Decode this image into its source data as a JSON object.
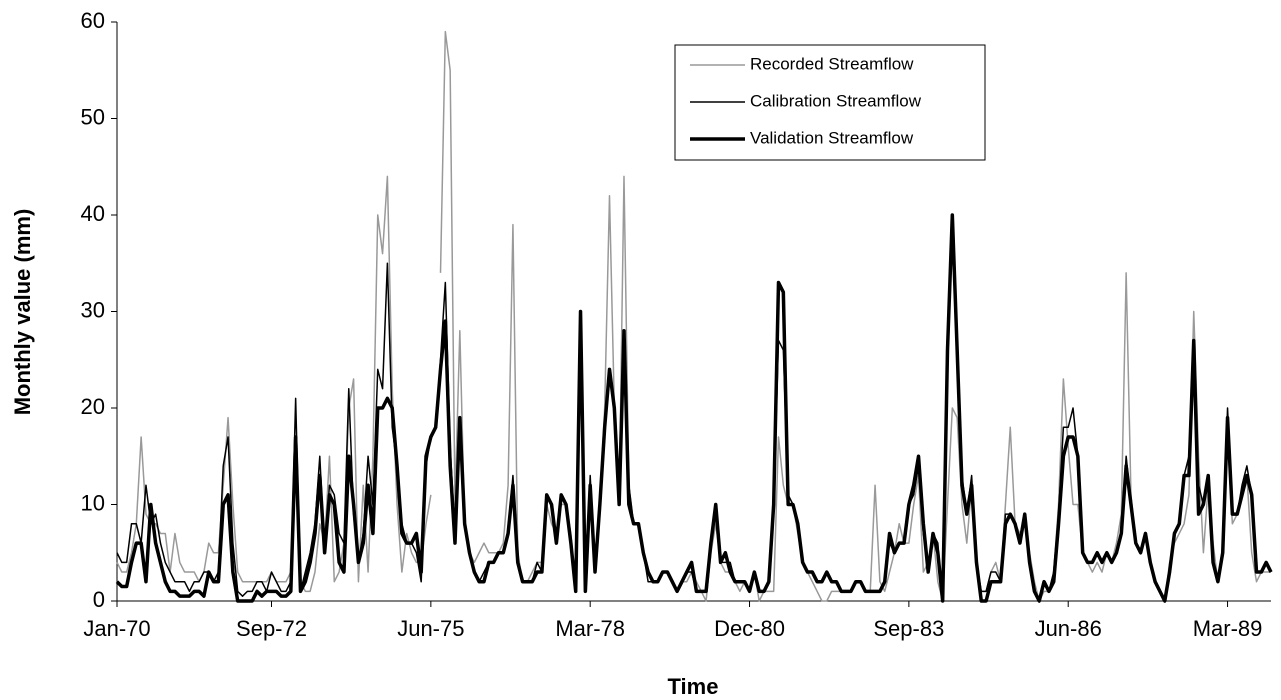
{
  "chart_data": {
    "type": "line",
    "x_label": "Time",
    "y_label": "Monthly value (mm)",
    "categories": [
      "Jan-70",
      null,
      null,
      null,
      null,
      null,
      null,
      null,
      null,
      null,
      null,
      null,
      null,
      null,
      null,
      null,
      null,
      null,
      null,
      null,
      null,
      null,
      null,
      null,
      null,
      null,
      null,
      null,
      null,
      null,
      null,
      null,
      "Sep-72",
      null,
      null,
      null,
      null,
      null,
      null,
      null,
      null,
      null,
      null,
      null,
      null,
      null,
      null,
      null,
      null,
      null,
      null,
      null,
      null,
      null,
      null,
      null,
      null,
      null,
      null,
      null,
      null,
      null,
      null,
      null,
      null,
      "Jun-75",
      null,
      null,
      null,
      null,
      null,
      null,
      null,
      null,
      null,
      null,
      null,
      null,
      null,
      null,
      null,
      null,
      null,
      null,
      null,
      null,
      null,
      null,
      null,
      null,
      null,
      null,
      null,
      null,
      null,
      null,
      null,
      null,
      "Mar-78",
      null,
      null,
      null,
      null,
      null,
      null,
      null,
      null,
      null,
      null,
      null,
      null,
      null,
      null,
      null,
      null,
      null,
      null,
      null,
      null,
      null,
      null,
      null,
      null,
      null,
      null,
      null,
      null,
      null,
      null,
      null,
      null,
      "Dec-80",
      null,
      null,
      null,
      null,
      null,
      null,
      null,
      null,
      null,
      null,
      null,
      null,
      null,
      null,
      null,
      null,
      null,
      null,
      null,
      null,
      null,
      null,
      null,
      null,
      null,
      null,
      null,
      null,
      null,
      null,
      null,
      null,
      "Sep-83",
      null,
      null,
      null,
      null,
      null,
      null,
      null,
      null,
      null,
      null,
      null,
      null,
      null,
      null,
      null,
      null,
      null,
      null,
      null,
      null,
      null,
      null,
      null,
      null,
      null,
      null,
      null,
      null,
      null,
      null,
      null,
      null,
      "Jun-86",
      null,
      null,
      null,
      null,
      null,
      null,
      null,
      null,
      null,
      null,
      null,
      null,
      null,
      null,
      null,
      null,
      null,
      null,
      null,
      null,
      null,
      null,
      null,
      null,
      null,
      null,
      null,
      null,
      null,
      null,
      null,
      null,
      "Mar-89",
      null,
      null,
      null,
      null,
      null,
      null,
      null,
      null,
      null
    ],
    "series": [
      {
        "name": "Recorded Streamflow",
        "color": "#999999",
        "width": 1.5,
        "values": [
          4,
          3,
          3,
          5,
          8,
          17,
          9,
          8,
          8,
          7,
          7,
          3,
          7,
          4,
          3,
          3,
          3,
          2,
          3,
          6,
          5,
          5,
          12,
          19,
          10,
          3,
          2,
          2,
          2,
          2,
          2,
          2,
          3,
          2,
          2,
          2,
          3,
          14,
          2,
          1,
          1,
          3,
          8,
          6,
          15,
          2,
          3,
          6,
          20,
          23,
          2,
          12,
          3,
          15,
          40,
          36,
          44,
          22,
          10,
          3,
          7,
          5,
          4,
          4,
          8,
          11,
          null,
          34,
          59,
          55,
          10,
          28,
          8,
          5,
          4,
          5,
          6,
          5,
          5,
          5,
          6,
          12,
          39,
          5,
          2,
          2,
          3,
          4,
          4,
          10,
          8,
          7,
          10,
          10,
          7,
          1,
          30,
          1,
          12,
          4,
          10,
          20,
          42,
          20,
          10,
          44,
          12,
          8,
          8,
          5,
          3,
          2,
          2,
          3,
          3,
          2,
          1,
          2,
          2,
          3,
          2,
          1,
          0,
          5,
          8,
          4,
          3,
          3,
          2,
          1,
          2,
          1,
          3,
          0,
          1,
          1,
          1,
          17,
          12,
          10,
          10,
          7,
          4,
          3,
          2,
          1,
          0,
          0,
          1,
          1,
          1,
          1,
          1,
          2,
          2,
          1,
          1,
          12,
          2,
          1,
          3,
          5,
          8,
          6,
          6,
          10,
          13,
          3,
          4,
          7,
          2,
          0,
          10,
          20,
          19,
          10,
          6,
          12,
          4,
          1,
          1,
          3,
          4,
          2,
          10,
          18,
          8,
          7,
          8,
          5,
          2,
          0,
          1,
          1,
          3,
          10,
          23,
          16,
          10,
          10,
          5,
          4,
          3,
          4,
          3,
          5,
          4,
          6,
          9,
          34,
          11,
          6,
          5,
          7,
          4,
          2,
          1,
          0,
          4,
          6,
          7,
          8,
          11,
          30,
          15,
          5,
          12,
          6,
          2,
          5,
          17,
          8,
          9,
          11,
          13,
          5,
          2,
          3,
          3,
          3
        ]
      },
      {
        "name": "Calibration Streamflow",
        "color": "#000000",
        "width": 1.5,
        "values": [
          5,
          4,
          4,
          8,
          8,
          6,
          12,
          8,
          9,
          6,
          4,
          3,
          2,
          2,
          2,
          1,
          2,
          2,
          3,
          3,
          2,
          3,
          14,
          17,
          6,
          1,
          0.5,
          1,
          1,
          2,
          2,
          1,
          3,
          2,
          1,
          1,
          2,
          21,
          1,
          3,
          5,
          8,
          15,
          5,
          12,
          11,
          7,
          6,
          22,
          9,
          4,
          7,
          15,
          10,
          24,
          22,
          35,
          18,
          14,
          8,
          6,
          6,
          5,
          2,
          14,
          17,
          18,
          25,
          33,
          16,
          7,
          18,
          8,
          5,
          3,
          2,
          3,
          4,
          4,
          5,
          5,
          7,
          13,
          4,
          2,
          2,
          2,
          4,
          3,
          11,
          10,
          6,
          11,
          10,
          6,
          1,
          30,
          1,
          13,
          3,
          10,
          18,
          24,
          20,
          10,
          27,
          12,
          8,
          8,
          5,
          2,
          2,
          2,
          3,
          3,
          2,
          1,
          2,
          3,
          3,
          1,
          1,
          1,
          6,
          9,
          4,
          4,
          4,
          2,
          2,
          2,
          1,
          3,
          1,
          1,
          2,
          10,
          27,
          26,
          11,
          10,
          8,
          4,
          3,
          3,
          2,
          2,
          3,
          2,
          2,
          1,
          1,
          1,
          2,
          2,
          1,
          1,
          1,
          1,
          2,
          6,
          5,
          6,
          6,
          10,
          11,
          14,
          7,
          3,
          7,
          6,
          0,
          25,
          39,
          27,
          13,
          9,
          13,
          4,
          1,
          1,
          3,
          3,
          2,
          9,
          9,
          8,
          6,
          9,
          4,
          1,
          0,
          2,
          1,
          3,
          9,
          18,
          18,
          20,
          15,
          5,
          4,
          4,
          5,
          4,
          5,
          4,
          5,
          7,
          15,
          10,
          6,
          5,
          7,
          4,
          2,
          1,
          0,
          3,
          7,
          8,
          13,
          15,
          27,
          12,
          10,
          13,
          4,
          2,
          5,
          20,
          9,
          9,
          12,
          14,
          11,
          3,
          3,
          4,
          3
        ]
      },
      {
        "name": "Validation Streamflow",
        "color": "#000000",
        "width": 3.5,
        "values": [
          2,
          1.5,
          1.5,
          4,
          6,
          6,
          2,
          10,
          6,
          4,
          2,
          1,
          1,
          0.5,
          0.5,
          0.5,
          1,
          1,
          0.5,
          3,
          2,
          2,
          10,
          11,
          3,
          0,
          0,
          0,
          0,
          1,
          0.5,
          1,
          1,
          1,
          0.5,
          0.5,
          1,
          17,
          1,
          2,
          4,
          7,
          13,
          5,
          11,
          10,
          4,
          3,
          15,
          10,
          4,
          6,
          12,
          7,
          20,
          20,
          21,
          20,
          14,
          7,
          6,
          6,
          7,
          3,
          15,
          17,
          18,
          24,
          29,
          14,
          6,
          19,
          8,
          5,
          3,
          2,
          2,
          4,
          4,
          5,
          5,
          7,
          12,
          4,
          2,
          2,
          2,
          3,
          3,
          11,
          10,
          6,
          11,
          10,
          6,
          1,
          30,
          1,
          12,
          3,
          10,
          18,
          24,
          20,
          10,
          28,
          10,
          8,
          8,
          5,
          3,
          2,
          2,
          3,
          3,
          2,
          1,
          2,
          3,
          4,
          1,
          1,
          1,
          6,
          10,
          4,
          5,
          3,
          2,
          2,
          2,
          1,
          3,
          1,
          1,
          2,
          10,
          33,
          32,
          10,
          10,
          8,
          4,
          3,
          3,
          2,
          2,
          3,
          2,
          2,
          1,
          1,
          1,
          2,
          2,
          1,
          1,
          1,
          1,
          2,
          7,
          5,
          6,
          6,
          10,
          12,
          15,
          8,
          3,
          7,
          5,
          0,
          26,
          40,
          26,
          12,
          9,
          12,
          4,
          0,
          0,
          2,
          2,
          2,
          8,
          9,
          8,
          6,
          9,
          4,
          1,
          0,
          2,
          1,
          2,
          8,
          15,
          17,
          17,
          15,
          5,
          4,
          4,
          5,
          4,
          5,
          4,
          5,
          7,
          14,
          10,
          6,
          5,
          7,
          4,
          2,
          1,
          0,
          3,
          7,
          8,
          13,
          13,
          27,
          9,
          10,
          13,
          4,
          2,
          5,
          19,
          9,
          9,
          11,
          13,
          11,
          3,
          3,
          4,
          3
        ]
      }
    ],
    "ylim": [
      0,
      60
    ],
    "yticks": [
      0,
      10,
      20,
      30,
      40,
      50,
      60
    ],
    "grid": false,
    "legend": "top-center"
  }
}
